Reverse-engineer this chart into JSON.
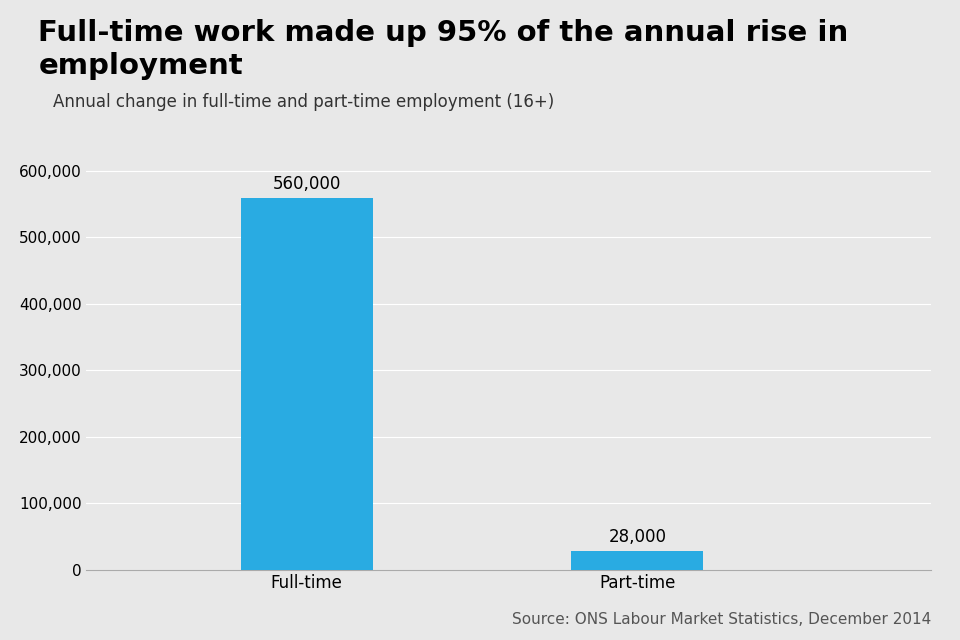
{
  "title": "Full-time work made up 95% of the annual rise in employment",
  "subtitle": "Annual change in full-time and part-time employment (16+)",
  "source": "Source: ONS Labour Market Statistics, December 2014",
  "categories": [
    "Full-time",
    "Part-time"
  ],
  "values": [
    560000,
    28000
  ],
  "bar_labels": [
    "560,000",
    "28,000"
  ],
  "bar_color": "#29ABE2",
  "background_color": "#E8E8E8",
  "title_fontsize": 21,
  "subtitle_fontsize": 12,
  "source_fontsize": 11,
  "label_fontsize": 12,
  "tick_fontsize": 11,
  "ylim": [
    0,
    660000
  ],
  "yticks": [
    0,
    100000,
    200000,
    300000,
    400000,
    500000,
    600000
  ]
}
